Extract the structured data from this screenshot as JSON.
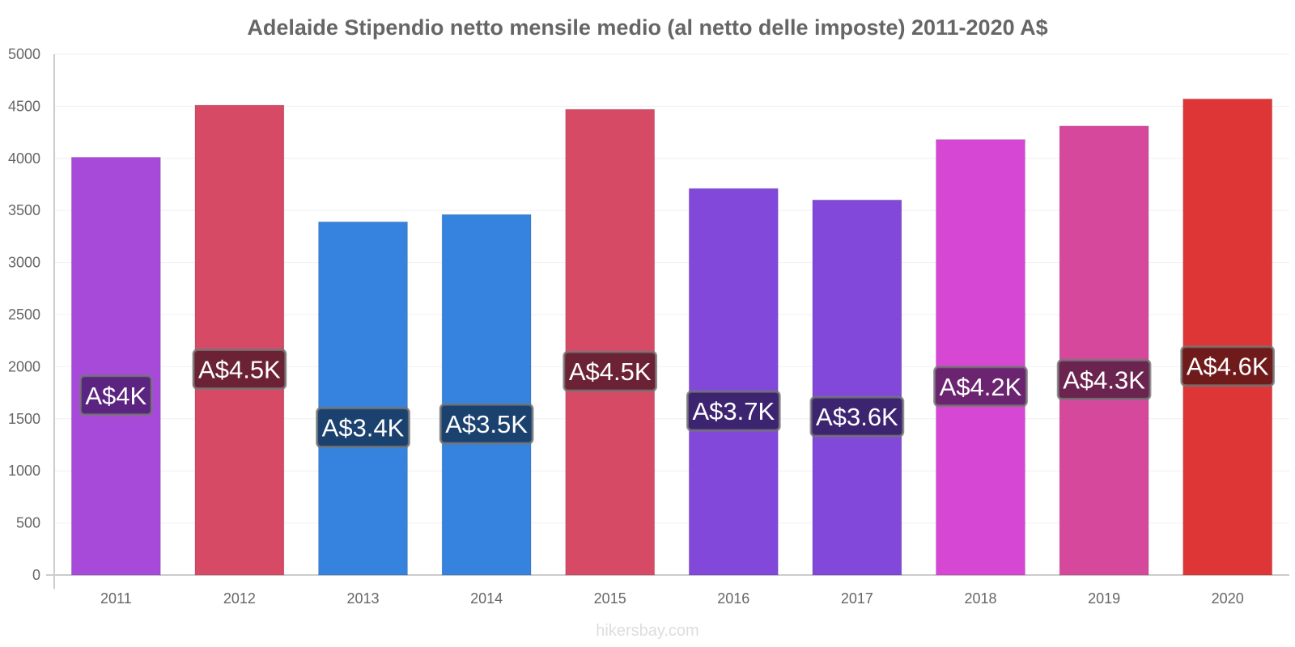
{
  "chart_data": {
    "type": "bar",
    "title": "Adelaide Stipendio netto mensile medio (al netto delle imposte) 2011-2020 A$",
    "xlabel": "",
    "ylabel": "",
    "ylim": [
      0,
      5000
    ],
    "yticks": [
      0,
      500,
      1000,
      1500,
      2000,
      2500,
      3000,
      3500,
      4000,
      4500,
      5000
    ],
    "categories": [
      "2011",
      "2012",
      "2013",
      "2014",
      "2015",
      "2016",
      "2017",
      "2018",
      "2019",
      "2020"
    ],
    "values": [
      4010,
      4510,
      3390,
      3460,
      4470,
      3710,
      3600,
      4180,
      4310,
      4570
    ],
    "data_labels": [
      "A$4K",
      "A$4.5K",
      "A$3.4K",
      "A$3.5K",
      "A$4.5K",
      "A$3.7K",
      "A$3.6K",
      "A$4.2K",
      "A$4.3K",
      "A$4.6K"
    ],
    "bar_colors": [
      "#a84ad9",
      "#d64a66",
      "#3583de",
      "#3583de",
      "#d64a66",
      "#8148d9",
      "#8148d9",
      "#d648d4",
      "#d6489c",
      "#de3636"
    ],
    "label_colors": [
      "#5b2480",
      "#6b2234",
      "#1b426f",
      "#1b426f",
      "#6b2234",
      "#3d2470",
      "#3d2470",
      "#6b2470",
      "#6b2450",
      "#6f1b1b"
    ],
    "grid": true,
    "legend": "none"
  },
  "watermark": "hikersbay.com"
}
